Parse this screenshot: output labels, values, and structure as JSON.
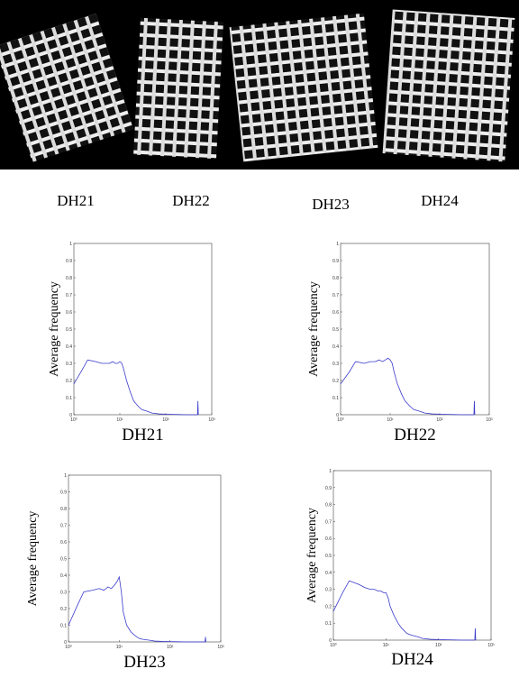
{
  "images": {
    "captions": [
      "DH21",
      "DH22",
      "DH23",
      "DH24"
    ]
  },
  "chart_data": [
    {
      "type": "line",
      "xlabel": "DH21",
      "ylabel": "Average frequency",
      "xscale": "log",
      "x": [
        1,
        1.5,
        2,
        3,
        4,
        5,
        6,
        7,
        8,
        9,
        10,
        11,
        12,
        14,
        17,
        20,
        25,
        30,
        40,
        50,
        70,
        100,
        150,
        200,
        300,
        490,
        500,
        510
      ],
      "series": [
        {
          "color": "#3a3acc",
          "values": [
            0.18,
            0.26,
            0.32,
            0.31,
            0.3,
            0.3,
            0.3,
            0.31,
            0.3,
            0.3,
            0.31,
            0.3,
            0.27,
            0.2,
            0.13,
            0.08,
            0.05,
            0.03,
            0.02,
            0.01,
            0.005,
            0.003,
            0.002,
            0.001,
            0,
            0,
            0.08,
            0
          ]
        }
      ],
      "xlim": [
        1,
        1000
      ],
      "xticks": [
        {
          "value": 1,
          "label": "10⁰"
        },
        {
          "value": 10,
          "label": "10¹"
        },
        {
          "value": 100,
          "label": "10²"
        },
        {
          "value": 1000,
          "label": "10³"
        }
      ],
      "ylim": [
        0,
        1
      ],
      "yticks": [
        0,
        0.1,
        0.2,
        0.3,
        0.4,
        0.5,
        0.6,
        0.7,
        0.8,
        0.9,
        1
      ]
    },
    {
      "type": "line",
      "xlabel": "DH22",
      "ylabel": "Average frequency",
      "xscale": "log",
      "x": [
        1,
        1.5,
        2,
        3,
        4,
        5,
        6,
        7,
        8,
        9,
        10,
        11,
        12,
        14,
        17,
        20,
        25,
        30,
        40,
        50,
        70,
        100,
        150,
        200,
        300,
        490,
        500,
        510
      ],
      "series": [
        {
          "color": "#3a3acc",
          "values": [
            0.18,
            0.25,
            0.31,
            0.3,
            0.31,
            0.31,
            0.32,
            0.31,
            0.32,
            0.33,
            0.32,
            0.3,
            0.25,
            0.18,
            0.12,
            0.08,
            0.05,
            0.03,
            0.02,
            0.01,
            0.005,
            0.003,
            0.002,
            0.001,
            0,
            0,
            0.08,
            0
          ]
        }
      ],
      "xlim": [
        1,
        1000
      ],
      "xticks": [
        {
          "value": 1,
          "label": "10⁰"
        },
        {
          "value": 10,
          "label": "10¹"
        },
        {
          "value": 100,
          "label": "10²"
        },
        {
          "value": 1000,
          "label": "10³"
        }
      ],
      "ylim": [
        0,
        1
      ],
      "yticks": [
        0,
        0.1,
        0.2,
        0.3,
        0.4,
        0.5,
        0.6,
        0.7,
        0.8,
        0.9,
        1
      ]
    },
    {
      "type": "line",
      "xlabel": "DH23",
      "ylabel": "Average frequency",
      "xscale": "log",
      "x": [
        1,
        1.5,
        2,
        3,
        4,
        5,
        6,
        7,
        8,
        9,
        10,
        11,
        12,
        14,
        17,
        20,
        25,
        30,
        40,
        50,
        70,
        100,
        150,
        200,
        300,
        490,
        500,
        510
      ],
      "series": [
        {
          "color": "#3a3acc",
          "values": [
            0.1,
            0.22,
            0.3,
            0.31,
            0.32,
            0.31,
            0.33,
            0.32,
            0.34,
            0.36,
            0.39,
            0.3,
            0.18,
            0.1,
            0.06,
            0.04,
            0.02,
            0.015,
            0.01,
            0.005,
            0.003,
            0.002,
            0.001,
            0,
            0,
            0,
            0.03,
            0
          ]
        }
      ],
      "xlim": [
        1,
        1000
      ],
      "xticks": [
        {
          "value": 1,
          "label": "10⁰"
        },
        {
          "value": 10,
          "label": "10¹"
        },
        {
          "value": 100,
          "label": "10²"
        },
        {
          "value": 1000,
          "label": "10³"
        }
      ],
      "ylim": [
        0,
        1
      ],
      "yticks": [
        0,
        0.1,
        0.2,
        0.3,
        0.4,
        0.5,
        0.6,
        0.7,
        0.8,
        0.9,
        1
      ]
    },
    {
      "type": "line",
      "xlabel": "DH24",
      "ylabel": "Average frequency",
      "xscale": "log",
      "x": [
        1,
        1.5,
        2,
        3,
        4,
        5,
        6,
        7,
        8,
        9,
        10,
        11,
        12,
        14,
        17,
        20,
        25,
        30,
        40,
        50,
        70,
        100,
        150,
        200,
        300,
        490,
        500,
        510
      ],
      "series": [
        {
          "color": "#3a3acc",
          "values": [
            0.17,
            0.28,
            0.35,
            0.33,
            0.31,
            0.3,
            0.3,
            0.29,
            0.29,
            0.28,
            0.28,
            0.25,
            0.2,
            0.15,
            0.1,
            0.07,
            0.04,
            0.03,
            0.02,
            0.01,
            0.005,
            0.003,
            0.002,
            0.001,
            0,
            0,
            0.07,
            0
          ]
        }
      ],
      "xlim": [
        1,
        1000
      ],
      "xticks": [
        {
          "value": 1,
          "label": "10⁰"
        },
        {
          "value": 10,
          "label": "10¹"
        },
        {
          "value": 100,
          "label": "10²"
        },
        {
          "value": 1000,
          "label": "10³"
        }
      ],
      "ylim": [
        0,
        1
      ],
      "yticks": [
        0,
        0.1,
        0.2,
        0.3,
        0.4,
        0.5,
        0.6,
        0.7,
        0.8,
        0.9,
        1
      ]
    }
  ]
}
